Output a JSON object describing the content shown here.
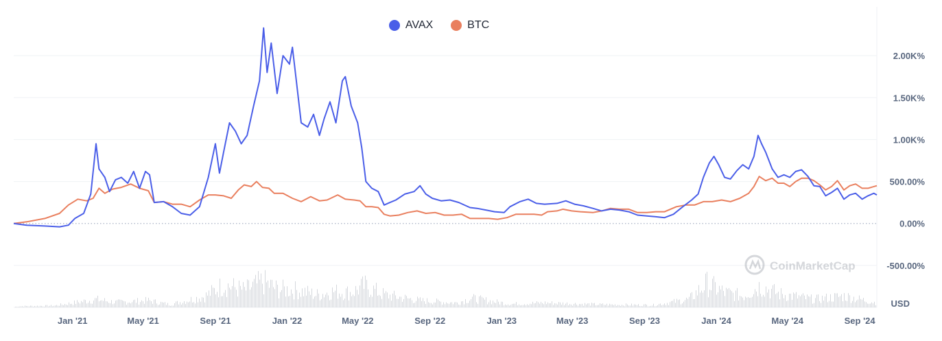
{
  "chart_data": {
    "type": "line",
    "currency_label": "USD",
    "watermark": "CoinMarketCap",
    "legend_position": "top-center",
    "grid": true,
    "ylim": [
      -1000,
      2500
    ],
    "y_ticks": [
      {
        "value": 2000,
        "label": "2.00K%"
      },
      {
        "value": 1500,
        "label": "1.50K%"
      },
      {
        "value": 1000,
        "label": "1.00K%"
      },
      {
        "value": 500,
        "label": "500.00%"
      },
      {
        "value": 0,
        "label": "0.00%"
      },
      {
        "value": -500,
        "label": "-500.00%"
      }
    ],
    "x_range": [
      "2020-09-23",
      "2024-09-30"
    ],
    "x_ticks": [
      {
        "date": "2021-01-01",
        "label": "Jan '21"
      },
      {
        "date": "2021-05-01",
        "label": "May '21"
      },
      {
        "date": "2021-09-01",
        "label": "Sep '21"
      },
      {
        "date": "2022-01-01",
        "label": "Jan '22"
      },
      {
        "date": "2022-05-01",
        "label": "May '22"
      },
      {
        "date": "2022-09-01",
        "label": "Sep '22"
      },
      {
        "date": "2023-01-01",
        "label": "Jan '23"
      },
      {
        "date": "2023-05-01",
        "label": "May '23"
      },
      {
        "date": "2023-09-01",
        "label": "Sep '23"
      },
      {
        "date": "2024-01-01",
        "label": "Jan '24"
      },
      {
        "date": "2024-05-01",
        "label": "May '24"
      },
      {
        "date": "2024-09-01",
        "label": "Sep '24"
      }
    ],
    "series": [
      {
        "name": "AVAX",
        "color": "#4a5ee8",
        "points": [
          [
            "2020-09-23",
            0
          ],
          [
            "2020-10-15",
            -20
          ],
          [
            "2020-11-15",
            -30
          ],
          [
            "2020-12-10",
            -40
          ],
          [
            "2020-12-25",
            -20
          ],
          [
            "2021-01-05",
            60
          ],
          [
            "2021-01-20",
            120
          ],
          [
            "2021-02-01",
            350
          ],
          [
            "2021-02-10",
            950
          ],
          [
            "2021-02-15",
            650
          ],
          [
            "2021-02-25",
            550
          ],
          [
            "2021-03-05",
            380
          ],
          [
            "2021-03-15",
            520
          ],
          [
            "2021-03-25",
            550
          ],
          [
            "2021-04-05",
            480
          ],
          [
            "2021-04-15",
            620
          ],
          [
            "2021-04-25",
            420
          ],
          [
            "2021-05-05",
            620
          ],
          [
            "2021-05-12",
            580
          ],
          [
            "2021-05-20",
            250
          ],
          [
            "2021-06-05",
            260
          ],
          [
            "2021-06-20",
            200
          ],
          [
            "2021-07-05",
            120
          ],
          [
            "2021-07-20",
            100
          ],
          [
            "2021-08-05",
            200
          ],
          [
            "2021-08-20",
            550
          ],
          [
            "2021-09-01",
            950
          ],
          [
            "2021-09-08",
            600
          ],
          [
            "2021-09-15",
            850
          ],
          [
            "2021-09-25",
            1200
          ],
          [
            "2021-10-05",
            1100
          ],
          [
            "2021-10-15",
            950
          ],
          [
            "2021-10-25",
            1050
          ],
          [
            "2021-11-05",
            1400
          ],
          [
            "2021-11-15",
            1700
          ],
          [
            "2021-11-22",
            2330
          ],
          [
            "2021-11-28",
            1800
          ],
          [
            "2021-12-05",
            2150
          ],
          [
            "2021-12-15",
            1550
          ],
          [
            "2021-12-25",
            2000
          ],
          [
            "2022-01-05",
            1900
          ],
          [
            "2022-01-10",
            2100
          ],
          [
            "2022-01-15",
            1800
          ],
          [
            "2022-01-25",
            1200
          ],
          [
            "2022-02-05",
            1150
          ],
          [
            "2022-02-15",
            1300
          ],
          [
            "2022-02-25",
            1050
          ],
          [
            "2022-03-05",
            1250
          ],
          [
            "2022-03-15",
            1450
          ],
          [
            "2022-03-25",
            1200
          ],
          [
            "2022-04-05",
            1700
          ],
          [
            "2022-04-10",
            1750
          ],
          [
            "2022-04-20",
            1400
          ],
          [
            "2022-05-01",
            1200
          ],
          [
            "2022-05-08",
            900
          ],
          [
            "2022-05-15",
            500
          ],
          [
            "2022-05-25",
            420
          ],
          [
            "2022-06-05",
            380
          ],
          [
            "2022-06-15",
            220
          ],
          [
            "2022-06-25",
            250
          ],
          [
            "2022-07-05",
            280
          ],
          [
            "2022-07-20",
            350
          ],
          [
            "2022-08-05",
            380
          ],
          [
            "2022-08-15",
            450
          ],
          [
            "2022-08-25",
            350
          ],
          [
            "2022-09-05",
            300
          ],
          [
            "2022-09-20",
            270
          ],
          [
            "2022-10-05",
            280
          ],
          [
            "2022-10-20",
            250
          ],
          [
            "2022-11-08",
            190
          ],
          [
            "2022-11-20",
            180
          ],
          [
            "2022-12-05",
            160
          ],
          [
            "2022-12-20",
            140
          ],
          [
            "2023-01-05",
            130
          ],
          [
            "2023-01-15",
            200
          ],
          [
            "2023-02-01",
            260
          ],
          [
            "2023-02-15",
            290
          ],
          [
            "2023-03-01",
            240
          ],
          [
            "2023-03-15",
            230
          ],
          [
            "2023-04-05",
            240
          ],
          [
            "2023-04-20",
            270
          ],
          [
            "2023-05-05",
            230
          ],
          [
            "2023-05-20",
            210
          ],
          [
            "2023-06-05",
            180
          ],
          [
            "2023-06-20",
            150
          ],
          [
            "2023-07-05",
            170
          ],
          [
            "2023-07-20",
            160
          ],
          [
            "2023-08-05",
            140
          ],
          [
            "2023-08-20",
            100
          ],
          [
            "2023-09-05",
            90
          ],
          [
            "2023-09-20",
            80
          ],
          [
            "2023-10-05",
            70
          ],
          [
            "2023-10-20",
            110
          ],
          [
            "2023-11-05",
            200
          ],
          [
            "2023-11-20",
            280
          ],
          [
            "2023-12-01",
            350
          ],
          [
            "2023-12-10",
            550
          ],
          [
            "2023-12-20",
            720
          ],
          [
            "2023-12-28",
            800
          ],
          [
            "2024-01-05",
            700
          ],
          [
            "2024-01-15",
            550
          ],
          [
            "2024-01-25",
            530
          ],
          [
            "2024-02-05",
            630
          ],
          [
            "2024-02-15",
            700
          ],
          [
            "2024-02-25",
            650
          ],
          [
            "2024-03-05",
            800
          ],
          [
            "2024-03-12",
            1050
          ],
          [
            "2024-03-18",
            950
          ],
          [
            "2024-03-25",
            850
          ],
          [
            "2024-04-05",
            650
          ],
          [
            "2024-04-15",
            550
          ],
          [
            "2024-04-25",
            580
          ],
          [
            "2024-05-05",
            550
          ],
          [
            "2024-05-15",
            620
          ],
          [
            "2024-05-25",
            640
          ],
          [
            "2024-06-05",
            560
          ],
          [
            "2024-06-15",
            450
          ],
          [
            "2024-06-25",
            440
          ],
          [
            "2024-07-05",
            330
          ],
          [
            "2024-07-15",
            370
          ],
          [
            "2024-07-25",
            420
          ],
          [
            "2024-08-05",
            290
          ],
          [
            "2024-08-15",
            340
          ],
          [
            "2024-08-25",
            360
          ],
          [
            "2024-09-05",
            290
          ],
          [
            "2024-09-15",
            330
          ],
          [
            "2024-09-25",
            360
          ],
          [
            "2024-09-30",
            340
          ]
        ]
      },
      {
        "name": "BTC",
        "color": "#e97f5e",
        "points": [
          [
            "2020-09-23",
            0
          ],
          [
            "2020-10-15",
            20
          ],
          [
            "2020-11-15",
            60
          ],
          [
            "2020-12-10",
            120
          ],
          [
            "2020-12-25",
            220
          ],
          [
            "2021-01-10",
            290
          ],
          [
            "2021-01-25",
            270
          ],
          [
            "2021-02-05",
            300
          ],
          [
            "2021-02-15",
            420
          ],
          [
            "2021-02-25",
            360
          ],
          [
            "2021-03-10",
            410
          ],
          [
            "2021-03-25",
            430
          ],
          [
            "2021-04-10",
            470
          ],
          [
            "2021-04-25",
            420
          ],
          [
            "2021-05-10",
            390
          ],
          [
            "2021-05-20",
            250
          ],
          [
            "2021-06-05",
            260
          ],
          [
            "2021-06-20",
            230
          ],
          [
            "2021-07-05",
            230
          ],
          [
            "2021-07-20",
            200
          ],
          [
            "2021-08-05",
            280
          ],
          [
            "2021-08-20",
            340
          ],
          [
            "2021-09-01",
            340
          ],
          [
            "2021-09-15",
            330
          ],
          [
            "2021-09-28",
            300
          ],
          [
            "2021-10-10",
            400
          ],
          [
            "2021-10-20",
            460
          ],
          [
            "2021-11-01",
            440
          ],
          [
            "2021-11-10",
            500
          ],
          [
            "2021-11-20",
            430
          ],
          [
            "2021-12-01",
            420
          ],
          [
            "2021-12-10",
            360
          ],
          [
            "2021-12-25",
            360
          ],
          [
            "2022-01-10",
            300
          ],
          [
            "2022-01-25",
            260
          ],
          [
            "2022-02-10",
            320
          ],
          [
            "2022-02-25",
            270
          ],
          [
            "2022-03-10",
            280
          ],
          [
            "2022-03-28",
            340
          ],
          [
            "2022-04-10",
            290
          ],
          [
            "2022-04-25",
            280
          ],
          [
            "2022-05-05",
            270
          ],
          [
            "2022-05-15",
            200
          ],
          [
            "2022-05-25",
            200
          ],
          [
            "2022-06-05",
            190
          ],
          [
            "2022-06-15",
            110
          ],
          [
            "2022-06-25",
            90
          ],
          [
            "2022-07-10",
            100
          ],
          [
            "2022-07-25",
            130
          ],
          [
            "2022-08-10",
            150
          ],
          [
            "2022-08-25",
            120
          ],
          [
            "2022-09-10",
            130
          ],
          [
            "2022-09-25",
            100
          ],
          [
            "2022-10-10",
            100
          ],
          [
            "2022-10-25",
            110
          ],
          [
            "2022-11-08",
            60
          ],
          [
            "2022-11-25",
            60
          ],
          [
            "2022-12-10",
            60
          ],
          [
            "2022-12-25",
            50
          ],
          [
            "2023-01-10",
            70
          ],
          [
            "2023-01-25",
            110
          ],
          [
            "2023-02-10",
            110
          ],
          [
            "2023-02-25",
            110
          ],
          [
            "2023-03-10",
            100
          ],
          [
            "2023-03-20",
            140
          ],
          [
            "2023-04-05",
            150
          ],
          [
            "2023-04-15",
            170
          ],
          [
            "2023-04-30",
            150
          ],
          [
            "2023-05-15",
            140
          ],
          [
            "2023-06-05",
            130
          ],
          [
            "2023-06-20",
            150
          ],
          [
            "2023-07-05",
            180
          ],
          [
            "2023-07-20",
            170
          ],
          [
            "2023-08-05",
            170
          ],
          [
            "2023-08-20",
            130
          ],
          [
            "2023-09-05",
            130
          ],
          [
            "2023-09-20",
            140
          ],
          [
            "2023-10-05",
            140
          ],
          [
            "2023-10-25",
            200
          ],
          [
            "2023-11-10",
            220
          ],
          [
            "2023-11-25",
            220
          ],
          [
            "2023-12-10",
            260
          ],
          [
            "2023-12-25",
            260
          ],
          [
            "2024-01-10",
            280
          ],
          [
            "2024-01-25",
            260
          ],
          [
            "2024-02-10",
            300
          ],
          [
            "2024-02-25",
            360
          ],
          [
            "2024-03-05",
            440
          ],
          [
            "2024-03-14",
            560
          ],
          [
            "2024-03-25",
            510
          ],
          [
            "2024-04-05",
            540
          ],
          [
            "2024-04-15",
            480
          ],
          [
            "2024-04-25",
            480
          ],
          [
            "2024-05-05",
            440
          ],
          [
            "2024-05-15",
            500
          ],
          [
            "2024-05-25",
            540
          ],
          [
            "2024-06-05",
            540
          ],
          [
            "2024-06-15",
            510
          ],
          [
            "2024-06-25",
            460
          ],
          [
            "2024-07-05",
            400
          ],
          [
            "2024-07-15",
            440
          ],
          [
            "2024-07-25",
            510
          ],
          [
            "2024-08-05",
            400
          ],
          [
            "2024-08-15",
            450
          ],
          [
            "2024-08-25",
            470
          ],
          [
            "2024-09-05",
            420
          ],
          [
            "2024-09-15",
            420
          ],
          [
            "2024-09-30",
            450
          ]
        ]
      }
    ],
    "volume": {
      "color": "#d4d7dc",
      "points": [
        [
          "2020-10-01",
          2
        ],
        [
          "2020-12-01",
          3
        ],
        [
          "2021-02-10",
          14
        ],
        [
          "2021-03-15",
          9
        ],
        [
          "2021-05-10",
          12
        ],
        [
          "2021-06-15",
          5
        ],
        [
          "2021-08-15",
          20
        ],
        [
          "2021-09-15",
          40
        ],
        [
          "2021-10-20",
          30
        ],
        [
          "2021-11-20",
          45
        ],
        [
          "2021-12-15",
          32
        ],
        [
          "2022-01-20",
          30
        ],
        [
          "2022-02-20",
          22
        ],
        [
          "2022-03-20",
          28
        ],
        [
          "2022-04-20",
          26
        ],
        [
          "2022-05-12",
          38
        ],
        [
          "2022-06-15",
          22
        ],
        [
          "2022-08-15",
          12
        ],
        [
          "2022-10-15",
          8
        ],
        [
          "2022-11-10",
          16
        ],
        [
          "2023-01-15",
          6
        ],
        [
          "2023-03-15",
          8
        ],
        [
          "2023-06-15",
          5
        ],
        [
          "2023-09-15",
          4
        ],
        [
          "2023-11-15",
          14
        ],
        [
          "2023-12-15",
          42
        ],
        [
          "2024-01-15",
          26
        ],
        [
          "2024-02-15",
          20
        ],
        [
          "2024-03-15",
          38
        ],
        [
          "2024-04-15",
          24
        ],
        [
          "2024-06-15",
          14
        ],
        [
          "2024-08-05",
          20
        ],
        [
          "2024-09-30",
          8
        ]
      ]
    }
  }
}
